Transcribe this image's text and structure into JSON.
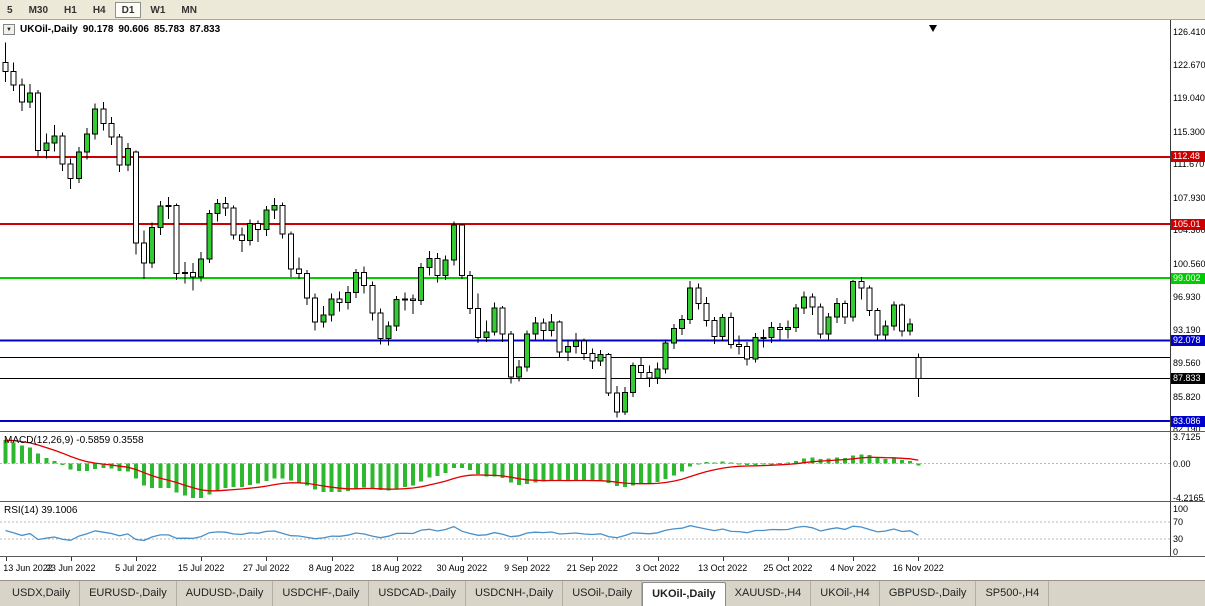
{
  "toolbar": {
    "buttons": [
      {
        "label": "5",
        "active": false
      },
      {
        "label": "M30",
        "active": false
      },
      {
        "label": "H1",
        "active": false
      },
      {
        "label": "H4",
        "active": false
      },
      {
        "label": "D1",
        "active": true
      },
      {
        "label": "W1",
        "active": false
      },
      {
        "label": "MN",
        "active": false
      }
    ]
  },
  "chart": {
    "title": {
      "symbol": "UKOil-,Daily",
      "open": "90.178",
      "high": "90.606",
      "low": "85.783",
      "close": "87.833"
    }
  },
  "chart_data": {
    "type": "candlestick",
    "symbol": "UKOil-",
    "period": "Daily",
    "price_range": [
      82.0,
      127.7
    ],
    "y_axis_labels": [
      "126.410",
      "122.670",
      "119.040",
      "115.300",
      "111.670",
      "107.930",
      "104.300",
      "100.560",
      "96.930",
      "93.190",
      "89.560",
      "85.820",
      "82.190"
    ],
    "x_labels": [
      "13 Jun 2022",
      "23 Jun 2022",
      "5 Jul 2022",
      "15 Jul 2022",
      "27 Jul 2022",
      "8 Aug 2022",
      "18 Aug 2022",
      "30 Aug 2022",
      "9 Sep 2022",
      "21 Sep 2022",
      "3 Oct 2022",
      "13 Oct 2022",
      "25 Oct 2022",
      "4 Nov 2022",
      "16 Nov 2022"
    ],
    "x_label_every": 8,
    "colors": {
      "bull": "#33cc33",
      "bear": "#ffffff",
      "outline": "#000000",
      "grid_dash": "#b8b8b8"
    },
    "hlines": [
      {
        "price": 112.48,
        "color": "#cc0000",
        "width": 2,
        "badge": "112.48"
      },
      {
        "price": 105.01,
        "color": "#cc0000",
        "width": 2,
        "badge": "105.01"
      },
      {
        "price": 99.002,
        "color": "#00cc00",
        "width": 2,
        "badge": "99.002"
      },
      {
        "price": 92.078,
        "color": "#0000cc",
        "width": 2,
        "badge": "92.078"
      },
      {
        "price": 90.2,
        "color": "#000000",
        "width": 1,
        "badge": null
      },
      {
        "price": 87.833,
        "color": "#000000",
        "width": 1,
        "badge": "87.833"
      },
      {
        "price": 83.086,
        "color": "#0000cc",
        "width": 2,
        "badge": "83.086"
      }
    ],
    "candles": [
      [
        123.0,
        125.2,
        120.8,
        122.0
      ],
      [
        122.0,
        123.0,
        119.8,
        120.5
      ],
      [
        120.5,
        121.2,
        117.6,
        118.6
      ],
      [
        118.6,
        120.6,
        117.9,
        119.6
      ],
      [
        119.6,
        119.9,
        112.5,
        113.2
      ],
      [
        113.2,
        115.1,
        112.3,
        114.0
      ],
      [
        114.0,
        116.0,
        113.1,
        114.8
      ],
      [
        114.8,
        115.2,
        110.9,
        111.7
      ],
      [
        111.7,
        112.3,
        108.9,
        110.1
      ],
      [
        110.1,
        113.6,
        109.6,
        113.0
      ],
      [
        113.0,
        115.7,
        112.2,
        115.0
      ],
      [
        115.0,
        118.4,
        114.4,
        117.8
      ],
      [
        117.8,
        118.6,
        115.4,
        116.2
      ],
      [
        116.2,
        116.9,
        113.8,
        114.7
      ],
      [
        114.7,
        115.0,
        110.8,
        111.6
      ],
      [
        111.6,
        114.0,
        110.9,
        113.4
      ],
      [
        113.0,
        113.2,
        101.6,
        102.9
      ],
      [
        102.9,
        104.3,
        98.9,
        100.7
      ],
      [
        100.7,
        105.2,
        100.1,
        104.6
      ],
      [
        104.6,
        107.6,
        103.8,
        107.0
      ],
      [
        107.0,
        108.0,
        105.6,
        107.1
      ],
      [
        107.1,
        107.3,
        98.8,
        99.5
      ],
      [
        99.5,
        100.8,
        98.4,
        99.6
      ],
      [
        99.6,
        100.7,
        97.6,
        99.1
      ],
      [
        99.1,
        101.9,
        98.6,
        101.1
      ],
      [
        101.1,
        106.6,
        100.7,
        106.2
      ],
      [
        106.2,
        107.8,
        105.3,
        107.3
      ],
      [
        107.3,
        108.0,
        105.9,
        106.8
      ],
      [
        106.8,
        107.1,
        103.3,
        103.8
      ],
      [
        103.8,
        104.6,
        101.9,
        103.2
      ],
      [
        103.2,
        105.5,
        102.6,
        105.1
      ],
      [
        105.1,
        105.4,
        103.0,
        104.4
      ],
      [
        104.4,
        107.0,
        103.7,
        106.6
      ],
      [
        106.6,
        107.9,
        105.6,
        107.1
      ],
      [
        107.1,
        107.4,
        103.4,
        103.9
      ],
      [
        103.9,
        104.2,
        99.1,
        100.0
      ],
      [
        100.0,
        101.3,
        98.9,
        99.5
      ],
      [
        99.5,
        99.9,
        96.0,
        96.8
      ],
      [
        96.8,
        97.3,
        93.2,
        94.1
      ],
      [
        94.1,
        95.9,
        93.5,
        94.9
      ],
      [
        94.9,
        97.3,
        94.2,
        96.7
      ],
      [
        96.7,
        97.5,
        95.3,
        96.3
      ],
      [
        96.3,
        98.1,
        95.5,
        97.4
      ],
      [
        97.4,
        100.0,
        96.8,
        99.6
      ],
      [
        99.6,
        100.3,
        97.3,
        98.2
      ],
      [
        98.2,
        98.6,
        94.3,
        95.1
      ],
      [
        95.1,
        95.6,
        91.6,
        92.3
      ],
      [
        92.3,
        94.2,
        91.5,
        93.7
      ],
      [
        93.7,
        97.0,
        93.1,
        96.6
      ],
      [
        96.6,
        97.4,
        95.4,
        96.7
      ],
      [
        96.7,
        97.2,
        95.0,
        96.5
      ],
      [
        96.5,
        100.7,
        96.0,
        100.2
      ],
      [
        100.2,
        102.0,
        99.3,
        101.2
      ],
      [
        101.2,
        101.8,
        98.5,
        99.3
      ],
      [
        99.3,
        101.5,
        98.8,
        101.0
      ],
      [
        101.0,
        105.3,
        100.4,
        104.9
      ],
      [
        104.9,
        105.0,
        98.9,
        99.3
      ],
      [
        99.3,
        99.8,
        95.0,
        95.6
      ],
      [
        95.6,
        97.3,
        91.8,
        92.4
      ],
      [
        92.4,
        94.3,
        91.9,
        93.0
      ],
      [
        93.0,
        96.3,
        92.6,
        95.7
      ],
      [
        95.7,
        95.9,
        91.9,
        92.8
      ],
      [
        92.8,
        93.1,
        87.3,
        88.0
      ],
      [
        88.0,
        89.9,
        87.5,
        89.1
      ],
      [
        89.1,
        93.2,
        88.6,
        92.8
      ],
      [
        92.8,
        94.7,
        92.1,
        94.0
      ],
      [
        94.0,
        94.5,
        92.0,
        93.2
      ],
      [
        93.2,
        95.0,
        92.5,
        94.1
      ],
      [
        94.1,
        94.3,
        90.2,
        90.8
      ],
      [
        90.8,
        92.1,
        89.8,
        91.4
      ],
      [
        91.4,
        92.9,
        90.6,
        92.0
      ],
      [
        92.0,
        92.3,
        89.9,
        90.6
      ],
      [
        90.6,
        91.2,
        88.9,
        89.8
      ],
      [
        89.8,
        91.0,
        89.2,
        90.5
      ],
      [
        90.5,
        90.7,
        85.9,
        86.2
      ],
      [
        86.2,
        87.0,
        83.5,
        84.1
      ],
      [
        84.1,
        86.9,
        83.8,
        86.3
      ],
      [
        86.3,
        89.6,
        85.8,
        89.3
      ],
      [
        89.3,
        90.1,
        87.8,
        88.5
      ],
      [
        88.5,
        89.3,
        86.9,
        87.9
      ],
      [
        87.9,
        89.6,
        87.2,
        88.9
      ],
      [
        88.9,
        92.2,
        88.4,
        91.8
      ],
      [
        91.8,
        93.9,
        91.1,
        93.4
      ],
      [
        93.4,
        94.9,
        92.7,
        94.4
      ],
      [
        94.4,
        98.7,
        93.9,
        97.9
      ],
      [
        97.9,
        98.4,
        95.5,
        96.2
      ],
      [
        96.2,
        96.9,
        93.6,
        94.3
      ],
      [
        94.3,
        94.7,
        91.7,
        92.5
      ],
      [
        92.5,
        95.0,
        92.0,
        94.6
      ],
      [
        94.6,
        95.2,
        91.2,
        91.6
      ],
      [
        91.6,
        92.6,
        90.5,
        91.4
      ],
      [
        91.4,
        91.9,
        89.3,
        90.0
      ],
      [
        90.0,
        92.9,
        89.6,
        92.4
      ],
      [
        92.4,
        93.3,
        91.3,
        92.4
      ],
      [
        92.4,
        94.1,
        91.8,
        93.5
      ],
      [
        93.5,
        94.0,
        92.1,
        93.3
      ],
      [
        93.3,
        94.3,
        92.3,
        93.5
      ],
      [
        93.5,
        96.1,
        93.0,
        95.7
      ],
      [
        95.7,
        97.5,
        95.0,
        96.9
      ],
      [
        96.9,
        97.3,
        94.9,
        95.8
      ],
      [
        95.8,
        96.2,
        92.3,
        92.8
      ],
      [
        92.8,
        95.1,
        92.2,
        94.7
      ],
      [
        94.7,
        96.8,
        94.0,
        96.2
      ],
      [
        96.2,
        96.5,
        93.9,
        94.7
      ],
      [
        94.7,
        98.8,
        94.2,
        98.6
      ],
      [
        98.6,
        99.1,
        96.6,
        97.9
      ],
      [
        97.9,
        98.2,
        94.8,
        95.4
      ],
      [
        95.4,
        95.7,
        92.1,
        92.7
      ],
      [
        92.7,
        94.3,
        92.0,
        93.7
      ],
      [
        93.7,
        96.4,
        93.2,
        96.0
      ],
      [
        96.0,
        96.2,
        92.5,
        93.1
      ],
      [
        93.1,
        94.5,
        92.6,
        93.9
      ],
      [
        90.178,
        90.606,
        85.783,
        87.833
      ]
    ],
    "indicators": {
      "macd": {
        "label": "MACD(12,26,9) -0.5859 0.3558",
        "params": [
          12,
          26,
          9
        ],
        "value": "-0.5859",
        "signal_value": "0.3558",
        "axis": [
          "3.7125",
          "0.00",
          "-4.2165"
        ],
        "range": [
          -4.6,
          3.9
        ],
        "hist_color": "#2eb82e",
        "signal_color": "#e00000"
      },
      "rsi": {
        "label": "RSI(14) 39.1006",
        "period": 14,
        "value": "39.1006",
        "axis": [
          "100",
          "70",
          "30",
          "0"
        ],
        "levels": [
          70,
          30
        ],
        "color": "#4a90c8"
      }
    }
  },
  "tabbar": {
    "tabs": [
      {
        "label": "USDX,Daily",
        "active": false
      },
      {
        "label": "EURUSD-,Daily",
        "active": false
      },
      {
        "label": "AUDUSD-,Daily",
        "active": false
      },
      {
        "label": "USDCHF-,Daily",
        "active": false
      },
      {
        "label": "USDCAD-,Daily",
        "active": false
      },
      {
        "label": "USDCNH-,Daily",
        "active": false
      },
      {
        "label": "USOil-,Daily",
        "active": false
      },
      {
        "label": "UKOil-,Daily",
        "active": true
      },
      {
        "label": "XAUUSD-,H4",
        "active": false
      },
      {
        "label": "UKOil-,H4",
        "active": false
      },
      {
        "label": "GBPUSD-,Daily",
        "active": false
      },
      {
        "label": "SP500-,H4",
        "active": false
      }
    ]
  }
}
